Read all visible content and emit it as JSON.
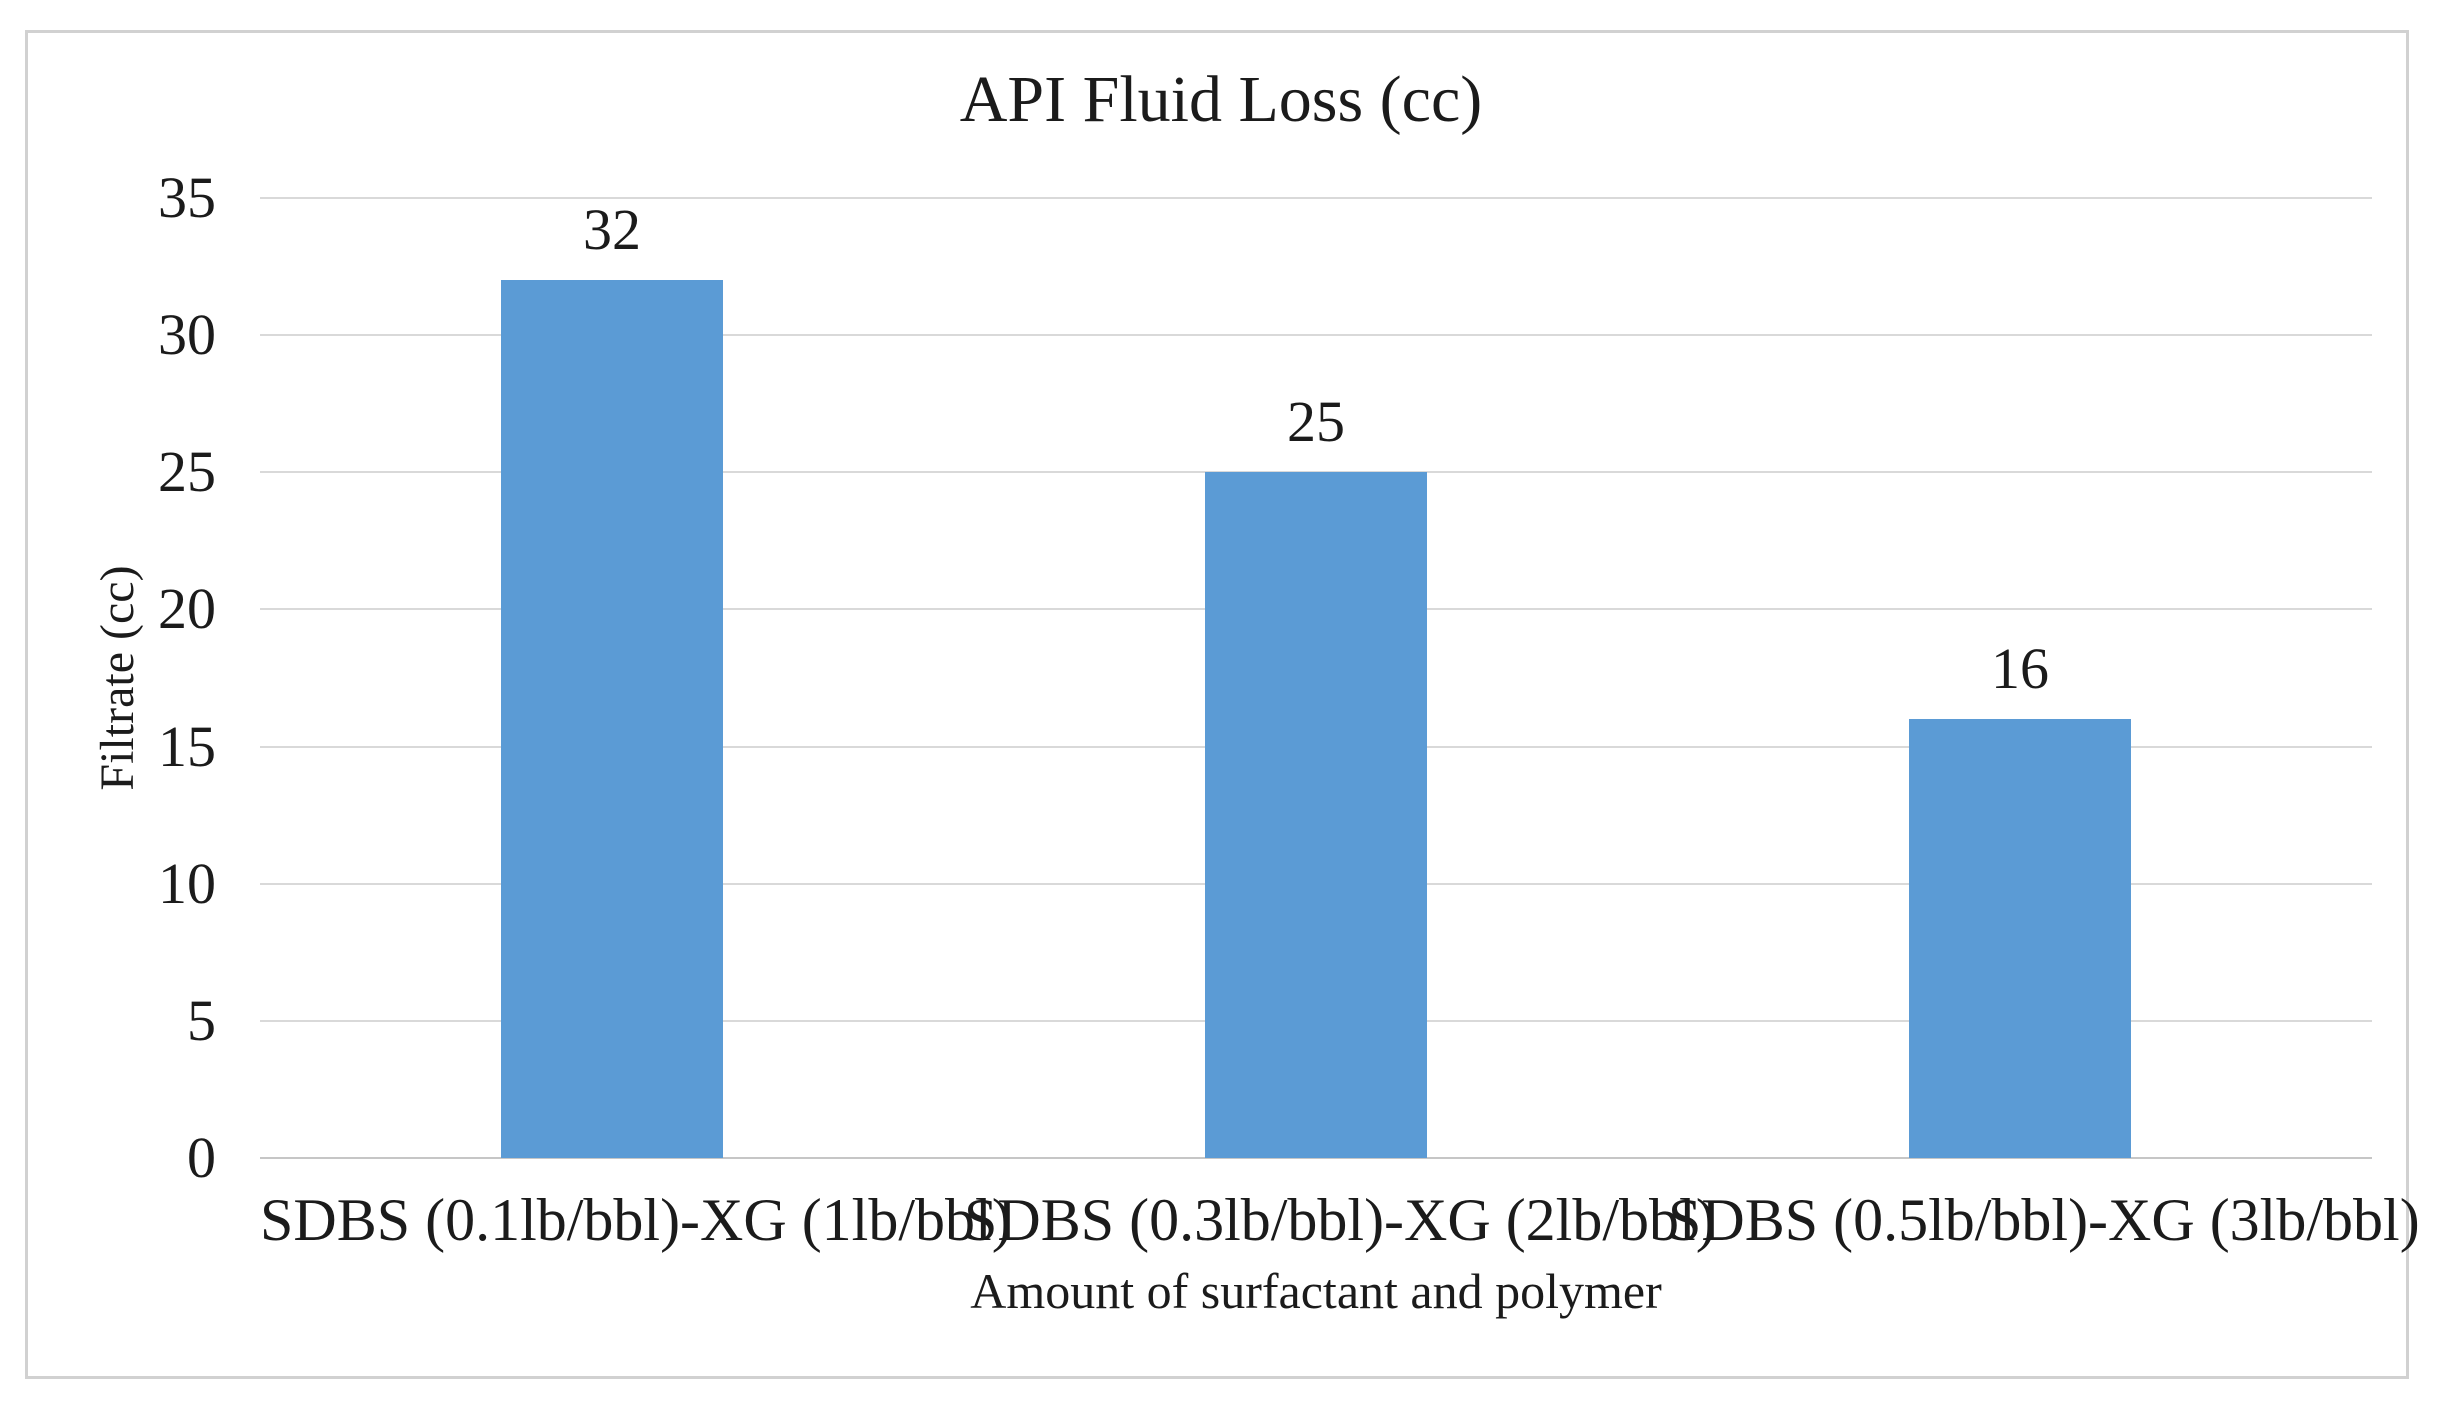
{
  "chart_data": {
    "type": "bar",
    "title": "API Fluid Loss (cc)",
    "xlabel": "Amount of surfactant and polymer",
    "ylabel": "Filtrate (cc)",
    "categories": [
      "SDBS (0.1lb/bbl)-XG (1lb/bbl)",
      "SDBS (0.3lb/bbl)-XG (2lb/bbl)",
      "SDBS (0.5lb/bbl)-XG (3lb/bbl)"
    ],
    "values": [
      32,
      25,
      16
    ],
    "data_labels": [
      "32",
      "25",
      "16"
    ],
    "ylim": [
      0,
      35
    ],
    "yticks": [
      0,
      5,
      10,
      15,
      20,
      25,
      30,
      35
    ],
    "grid": "horizontal-only",
    "legend_position": "none",
    "colors": {
      "bar_fill": "#5B9BD5",
      "gridline": "#D9D9D9",
      "baseline": "#C6C6C6",
      "text": "#1B1B1B",
      "frame_border": "#D1D1D1",
      "background": "#FFFFFF"
    }
  }
}
